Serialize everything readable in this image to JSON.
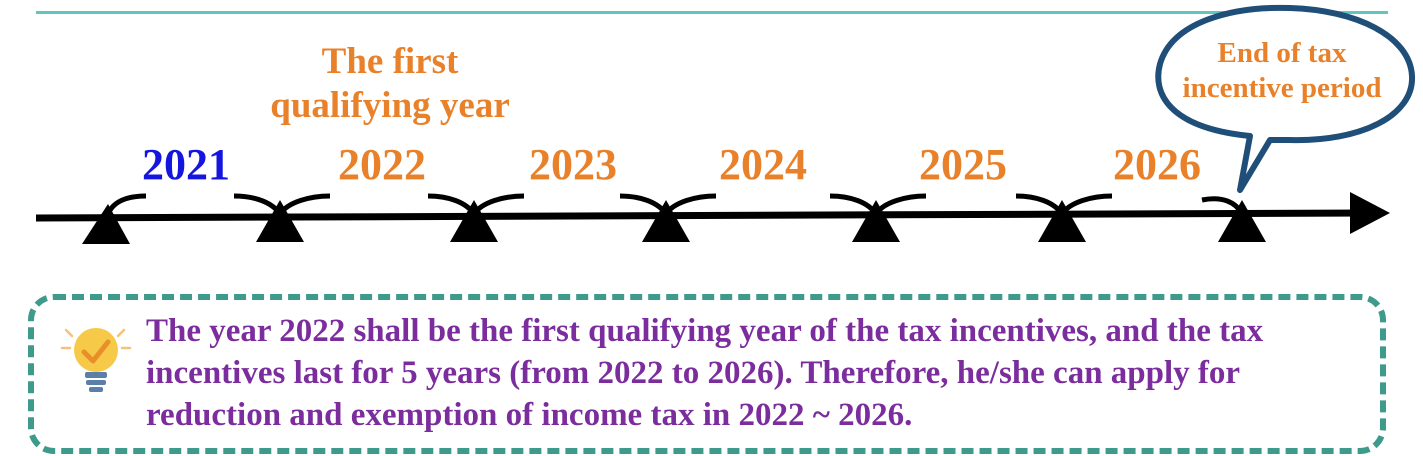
{
  "timeline": {
    "first_year_label": "The first qualifying year",
    "years": [
      {
        "label": "2021",
        "color": "#1515e0"
      },
      {
        "label": "2022",
        "color": "#e8812a"
      },
      {
        "label": "2023",
        "color": "#e8812a"
      },
      {
        "label": "2024",
        "color": "#e8812a"
      },
      {
        "label": "2025",
        "color": "#e8812a"
      },
      {
        "label": "2026",
        "color": "#e8812a"
      }
    ],
    "end_label": "End of tax incentive period",
    "colors": {
      "axis": "#000000",
      "label_orange": "#e8812a",
      "bubble_border": "#1f4e79"
    }
  },
  "note": {
    "icon": "lightbulb-check-icon",
    "text": "The year 2022 shall be the first qualifying year of the tax incentives, and the tax incentives last for 5 years (from 2022 to 2026). Therefore, he/she can apply for reduction and exemption of income tax in 2022 ~ 2026.",
    "colors": {
      "text": "#7b2d9e",
      "border": "#3e9b8c"
    }
  }
}
